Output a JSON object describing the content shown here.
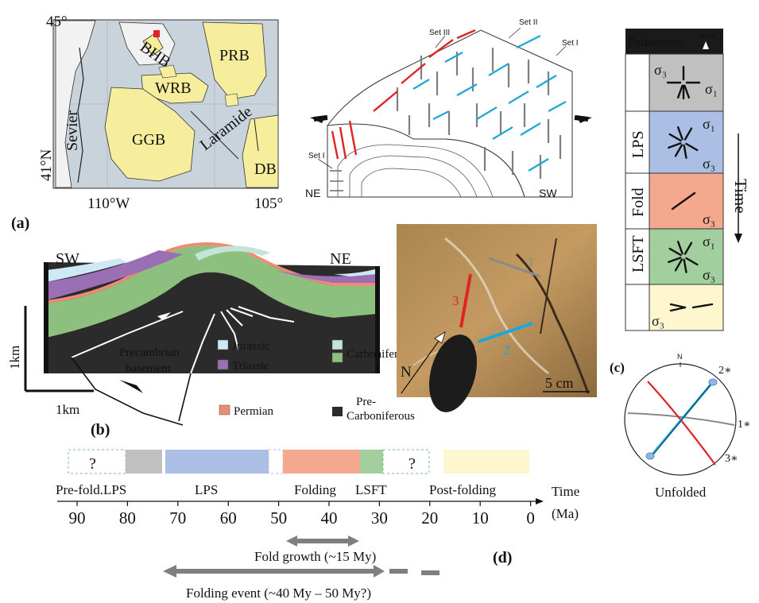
{
  "panel_a": {
    "label": "(a)",
    "lat_top": "45°",
    "lat_bottom": "41°N",
    "lon_left": "110°W",
    "lon_right": "105°",
    "basins": {
      "bhb": "BHB",
      "prb": "PRB",
      "wrb": "WRB",
      "ggb": "GGB",
      "db": "DB"
    },
    "belts": {
      "sevier": "Sevier",
      "laramide": "Laramide"
    },
    "colors": {
      "land": "#c8d3dc",
      "basin": "#f6ee9c"
    }
  },
  "block_diagram": {
    "set1_top": "Set I",
    "set2": "Set II",
    "set3": "Set III",
    "set1_left": "Set I",
    "ne": "NE",
    "sw": "SW",
    "colors": {
      "set1": "#7f7f7f",
      "set2": "#1ea6d8",
      "set3": "#e02323"
    }
  },
  "paleostress": {
    "header": "Paleostress",
    "north": "North",
    "time_label": "Time",
    "rows": [
      {
        "label": "",
        "color": "#c0c0c0",
        "sigma_a": "σ₃",
        "sigma_b": "σ₁"
      },
      {
        "label": "LPS",
        "color": "#aabfe3",
        "sigma_a": "σ₁",
        "sigma_b": "σ₃"
      },
      {
        "label": "Fold",
        "color": "#f4a98e",
        "sigma_a": "",
        "sigma_b": "σ₃"
      },
      {
        "label": "LSFT",
        "color": "#a3cf9f",
        "sigma_a": "σ₁",
        "sigma_b": "σ₃"
      },
      {
        "label": "",
        "color": "#fdf6cf",
        "sigma_a": "",
        "sigma_b": "σ₃"
      }
    ]
  },
  "panel_b": {
    "label": "(b)",
    "sw": "SW",
    "ne": "NE",
    "scale_v": "1km",
    "scale_h": "1km",
    "basement": "Precambrian basement",
    "legend": [
      {
        "name": "Jurassic",
        "color": "#cfe8f6"
      },
      {
        "name": "Triassic",
        "color": "#9b6fb3"
      },
      {
        "name": "Permian",
        "color": "#ef8a73"
      },
      {
        "name": "Carboniferous",
        "color": "#8dbf7f"
      },
      {
        "name": "Pre-Carboniferous",
        "color": "#2b2b2b"
      }
    ]
  },
  "photo": {
    "n": "N",
    "scale": "5 cm",
    "vein_1": "1",
    "vein_2": "2",
    "vein_3": "3"
  },
  "panel_c": {
    "label": "(c)",
    "north": "N",
    "labels": [
      "2∗",
      "1∗",
      "3∗"
    ],
    "caption": "Unfolded"
  },
  "panel_d": {
    "label": "(d)",
    "unknown_left": "?",
    "unknown_right": "?",
    "phases": [
      "Pre-fold.LPS",
      "LPS",
      "Folding",
      "LSFT",
      "Post-folding"
    ],
    "axis_title": "Time",
    "axis_unit": "(Ma)",
    "ticks": [
      "90",
      "80",
      "70",
      "60",
      "50",
      "40",
      "30",
      "20",
      "10",
      "0"
    ],
    "fold_growth": "Fold growth (~15 My)",
    "folding_event": "Folding event (~40 My – 50 My?)"
  }
}
